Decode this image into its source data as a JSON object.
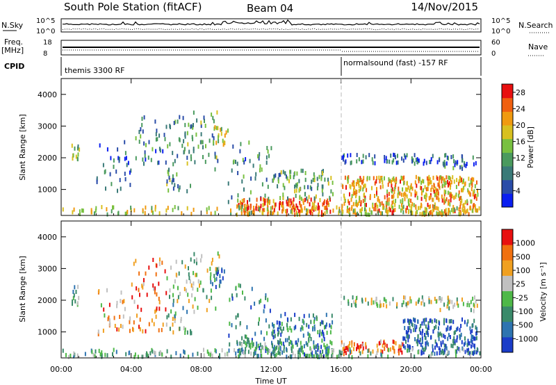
{
  "header": {
    "station": "South Pole Station (fitACF)",
    "beam": "Beam 04",
    "date": "14/Nov/2015"
  },
  "aux_panels": {
    "nsky_label": "N.Sky",
    "nsearch_label": "N.Search",
    "nsky_ticks": [
      "10^5",
      "10^0"
    ],
    "nsearch_ticks": [
      "10^5",
      "10^0"
    ],
    "freq_label_1": "Freq.",
    "freq_label_2": "[MHz]",
    "freq_ticks": [
      "18",
      "8"
    ],
    "nave_label": "Nave",
    "nave_ticks": [
      "60",
      "0"
    ],
    "cpid_label": "CPID",
    "cpid_segments": [
      {
        "start_hour": 0,
        "end_hour": 16,
        "text": "themis 3300 RF"
      },
      {
        "start_hour": 16,
        "end_hour": 24,
        "text": "normalsound (fast) -157 RF"
      }
    ]
  },
  "chart_data": [
    {
      "type": "heatmap",
      "name": "power",
      "ylabel": "Slant Range [km]",
      "xlim": [
        0,
        24
      ],
      "ylim": [
        180,
        4500
      ],
      "x_ticks": [
        "00:00",
        "04:00",
        "08:00",
        "12:00",
        "16:00",
        "20:00",
        "00:00"
      ],
      "x_tick_values": [
        0,
        4,
        8,
        12,
        16,
        20,
        24
      ],
      "y_ticks": [
        "1000",
        "2000",
        "3000",
        "4000"
      ],
      "y_tick_values": [
        1000,
        2000,
        3000,
        4000
      ],
      "colorbar": {
        "label": "Power [dB]",
        "range": [
          0,
          30
        ],
        "ticks": [
          "4",
          "8",
          "12",
          "16",
          "20",
          "24",
          "28"
        ],
        "tick_values": [
          4,
          8,
          12,
          16,
          20,
          24,
          28
        ],
        "colors": [
          "#0a1ef0",
          "#2a4ca8",
          "#3a7a78",
          "#4a9a5e",
          "#78c040",
          "#d8c020",
          "#f09a10",
          "#f06010",
          "#e81010"
        ]
      },
      "scatter_regions": [
        {
          "t": [
            0.5,
            1.0
          ],
          "r": [
            1850,
            2450
          ],
          "level": 0.5,
          "density": 0.5
        },
        {
          "t": [
            2.0,
            4.0
          ],
          "r": [
            800,
            2500
          ],
          "level": 0.2,
          "density": 0.12
        },
        {
          "t": [
            4.0,
            6.0
          ],
          "r": [
            1800,
            3300
          ],
          "level": 0.25,
          "density": 0.15
        },
        {
          "t": [
            6.0,
            7.5
          ],
          "r": [
            900,
            3500
          ],
          "level": 0.35,
          "density": 0.18
        },
        {
          "t": [
            7.5,
            9.0
          ],
          "r": [
            1600,
            3500
          ],
          "level": 0.4,
          "density": 0.16
        },
        {
          "t": [
            8.5,
            9.5
          ],
          "r": [
            2400,
            3000
          ],
          "level": 0.6,
          "density": 0.35
        },
        {
          "t": [
            9.5,
            12.0
          ],
          "r": [
            600,
            2500
          ],
          "level": 0.3,
          "density": 0.12
        },
        {
          "t": [
            10.0,
            15.5
          ],
          "r": [
            200,
            700
          ],
          "level": 0.85,
          "density": 0.7
        },
        {
          "t": [
            12.0,
            15.5
          ],
          "r": [
            700,
            1600
          ],
          "level": 0.4,
          "density": 0.35
        },
        {
          "t": [
            16.0,
            23.8
          ],
          "r": [
            200,
            1400
          ],
          "level": 0.7,
          "density": 0.65
        },
        {
          "t": [
            16.0,
            21.5
          ],
          "r": [
            1800,
            2100
          ],
          "level": 0.2,
          "density": 0.45
        },
        {
          "t": [
            21.5,
            23.8
          ],
          "r": [
            1650,
            2100
          ],
          "level": 0.25,
          "density": 0.4
        },
        {
          "t": [
            0.0,
            24.0
          ],
          "r": [
            200,
            450
          ],
          "level": 0.55,
          "density": 0.3
        }
      ]
    },
    {
      "type": "heatmap",
      "name": "velocity",
      "ylabel": "Slant Range [km]",
      "xlabel": "Time UT",
      "xlim": [
        0,
        24
      ],
      "ylim": [
        180,
        4500
      ],
      "x_ticks": [
        "00:00",
        "04:00",
        "08:00",
        "12:00",
        "16:00",
        "20:00",
        "00:00"
      ],
      "x_tick_values": [
        0,
        4,
        8,
        12,
        16,
        20,
        24
      ],
      "y_ticks": [
        "1000",
        "2000",
        "3000",
        "4000"
      ],
      "y_tick_values": [
        1000,
        2000,
        3000,
        4000
      ],
      "colorbar": {
        "label": "Velocity [m s⁻¹]",
        "ticks": [
          "1000",
          "500",
          "100",
          "25",
          "-25",
          "-100",
          "-500",
          "-1000"
        ],
        "colors": [
          "#1a3cc8",
          "#2e74b0",
          "#3a8a6a",
          "#4eb848",
          "#c0c0c0",
          "#f0a020",
          "#f07010",
          "#e81010"
        ]
      },
      "scatter_regions": [
        {
          "t": [
            0.5,
            1.0
          ],
          "r": [
            1850,
            2450
          ],
          "level": 0.4,
          "density": 0.5
        },
        {
          "t": [
            2.0,
            4.0
          ],
          "r": [
            800,
            2500
          ],
          "level": 0.7,
          "density": 0.12
        },
        {
          "t": [
            4.0,
            6.0
          ],
          "r": [
            1000,
            3300
          ],
          "level": 0.8,
          "density": 0.15
        },
        {
          "t": [
            6.0,
            7.5
          ],
          "r": [
            900,
            3500
          ],
          "level": 0.45,
          "density": 0.18
        },
        {
          "t": [
            7.5,
            9.0
          ],
          "r": [
            1600,
            3500
          ],
          "level": 0.5,
          "density": 0.16
        },
        {
          "t": [
            8.5,
            9.5
          ],
          "r": [
            2400,
            3000
          ],
          "level": 0.25,
          "density": 0.35
        },
        {
          "t": [
            9.5,
            12.0
          ],
          "r": [
            600,
            2500
          ],
          "level": 0.3,
          "density": 0.12
        },
        {
          "t": [
            10.0,
            15.5
          ],
          "r": [
            200,
            700
          ],
          "level": 0.3,
          "density": 0.7
        },
        {
          "t": [
            12.0,
            15.5
          ],
          "r": [
            700,
            1600
          ],
          "level": 0.25,
          "density": 0.35
        },
        {
          "t": [
            16.0,
            19.5
          ],
          "r": [
            300,
            700
          ],
          "level": 0.8,
          "density": 0.6
        },
        {
          "t": [
            19.5,
            23.8
          ],
          "r": [
            300,
            1400
          ],
          "level": 0.15,
          "density": 0.6
        },
        {
          "t": [
            16.0,
            21.5
          ],
          "r": [
            1800,
            2100
          ],
          "level": 0.5,
          "density": 0.45
        },
        {
          "t": [
            21.5,
            23.8
          ],
          "r": [
            1650,
            2100
          ],
          "level": 0.5,
          "density": 0.4
        },
        {
          "t": [
            0.0,
            24.0
          ],
          "r": [
            200,
            450
          ],
          "level": 0.4,
          "density": 0.3
        }
      ]
    }
  ]
}
